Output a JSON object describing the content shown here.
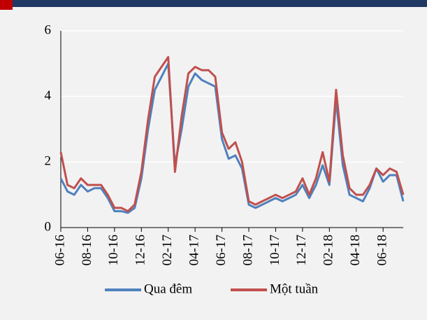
{
  "chart_data": {
    "type": "line",
    "categories": [
      "06-16",
      null,
      null,
      null,
      "08-16",
      null,
      null,
      null,
      "10-16",
      null,
      null,
      null,
      "12-16",
      null,
      null,
      null,
      "02-17",
      null,
      null,
      null,
      "04-17",
      null,
      null,
      null,
      "06-17",
      null,
      null,
      null,
      "08-17",
      null,
      null,
      null,
      "10-17",
      null,
      null,
      null,
      "12-17",
      null,
      null,
      null,
      "02-18",
      null,
      null,
      null,
      "04-18",
      null,
      null,
      null,
      "06-18",
      null,
      null,
      null
    ],
    "series": [
      {
        "name": "Qua đêm",
        "color": "#4f81bd",
        "values": [
          1.5,
          1.1,
          1.0,
          1.3,
          1.1,
          1.2,
          1.2,
          0.9,
          0.5,
          0.5,
          0.45,
          0.6,
          1.5,
          3.0,
          4.2,
          4.6,
          5.0,
          1.9,
          3.0,
          4.3,
          4.7,
          4.5,
          4.4,
          4.3,
          2.7,
          2.1,
          2.2,
          1.8,
          0.7,
          0.6,
          0.7,
          0.8,
          0.9,
          0.8,
          0.9,
          1.0,
          1.3,
          0.9,
          1.3,
          1.9,
          1.3,
          3.9,
          1.9,
          1.0,
          0.9,
          0.8,
          1.2,
          1.8,
          1.4,
          1.6,
          1.6,
          0.8
        ]
      },
      {
        "name": "Một tuần",
        "color": "#c0504d",
        "values": [
          2.3,
          1.3,
          1.2,
          1.5,
          1.3,
          1.3,
          1.3,
          1.0,
          0.6,
          0.6,
          0.5,
          0.7,
          1.7,
          3.3,
          4.6,
          4.9,
          5.2,
          1.7,
          3.4,
          4.7,
          4.9,
          4.8,
          4.8,
          4.6,
          2.9,
          2.4,
          2.6,
          2.0,
          0.8,
          0.7,
          0.8,
          0.9,
          1.0,
          0.9,
          1.0,
          1.1,
          1.5,
          1.0,
          1.5,
          2.3,
          1.4,
          4.2,
          2.2,
          1.2,
          1.0,
          1.0,
          1.3,
          1.8,
          1.6,
          1.8,
          1.7,
          1.0
        ]
      }
    ],
    "ylim": [
      0,
      6
    ],
    "yticks": [
      0,
      2,
      4,
      6
    ],
    "grid": true
  }
}
